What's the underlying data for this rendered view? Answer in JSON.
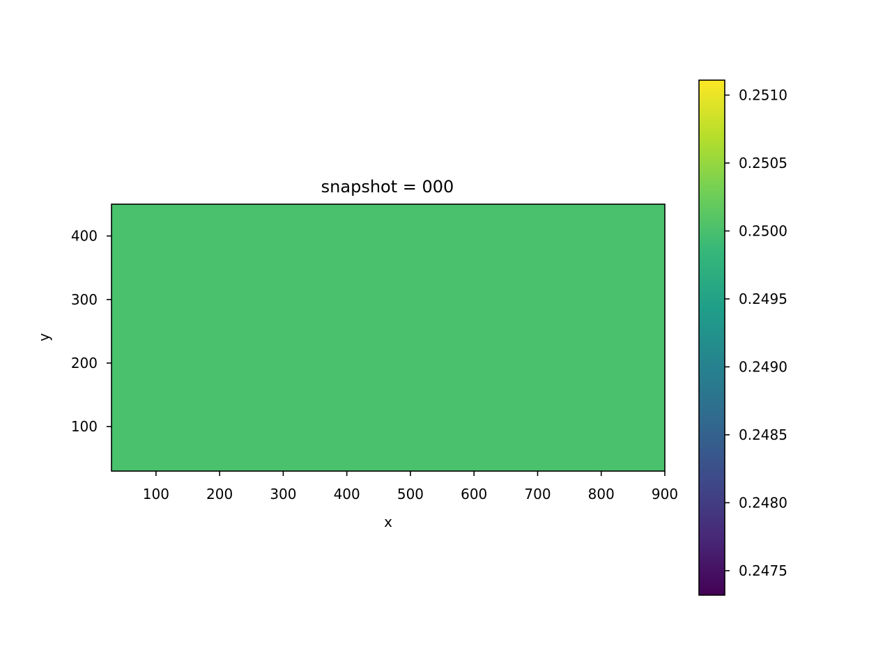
{
  "chart_data": {
    "type": "heatmap",
    "title": "snapshot = 000",
    "xlabel": "x",
    "ylabel": "y",
    "xlim": [
      30,
      900
    ],
    "ylim": [
      30,
      450
    ],
    "xticks": [
      100,
      200,
      300,
      400,
      500,
      600,
      700,
      800,
      900
    ],
    "yticks": [
      100,
      200,
      300,
      400
    ],
    "field": {
      "value": 0.25
    },
    "colorbar": {
      "colormap": "viridis",
      "range": [
        0.24732,
        0.25111
      ],
      "ticks": [
        "0.2475",
        "0.2480",
        "0.2485",
        "0.2490",
        "0.2495",
        "0.2500",
        "0.2505",
        "0.2510"
      ]
    },
    "colormap_stops": [
      "#440154",
      "#482878",
      "#3e4989",
      "#31688e",
      "#26828e",
      "#1f9e89",
      "#35b779",
      "#6ece58",
      "#b5de2b",
      "#fde725"
    ],
    "grid": false
  }
}
